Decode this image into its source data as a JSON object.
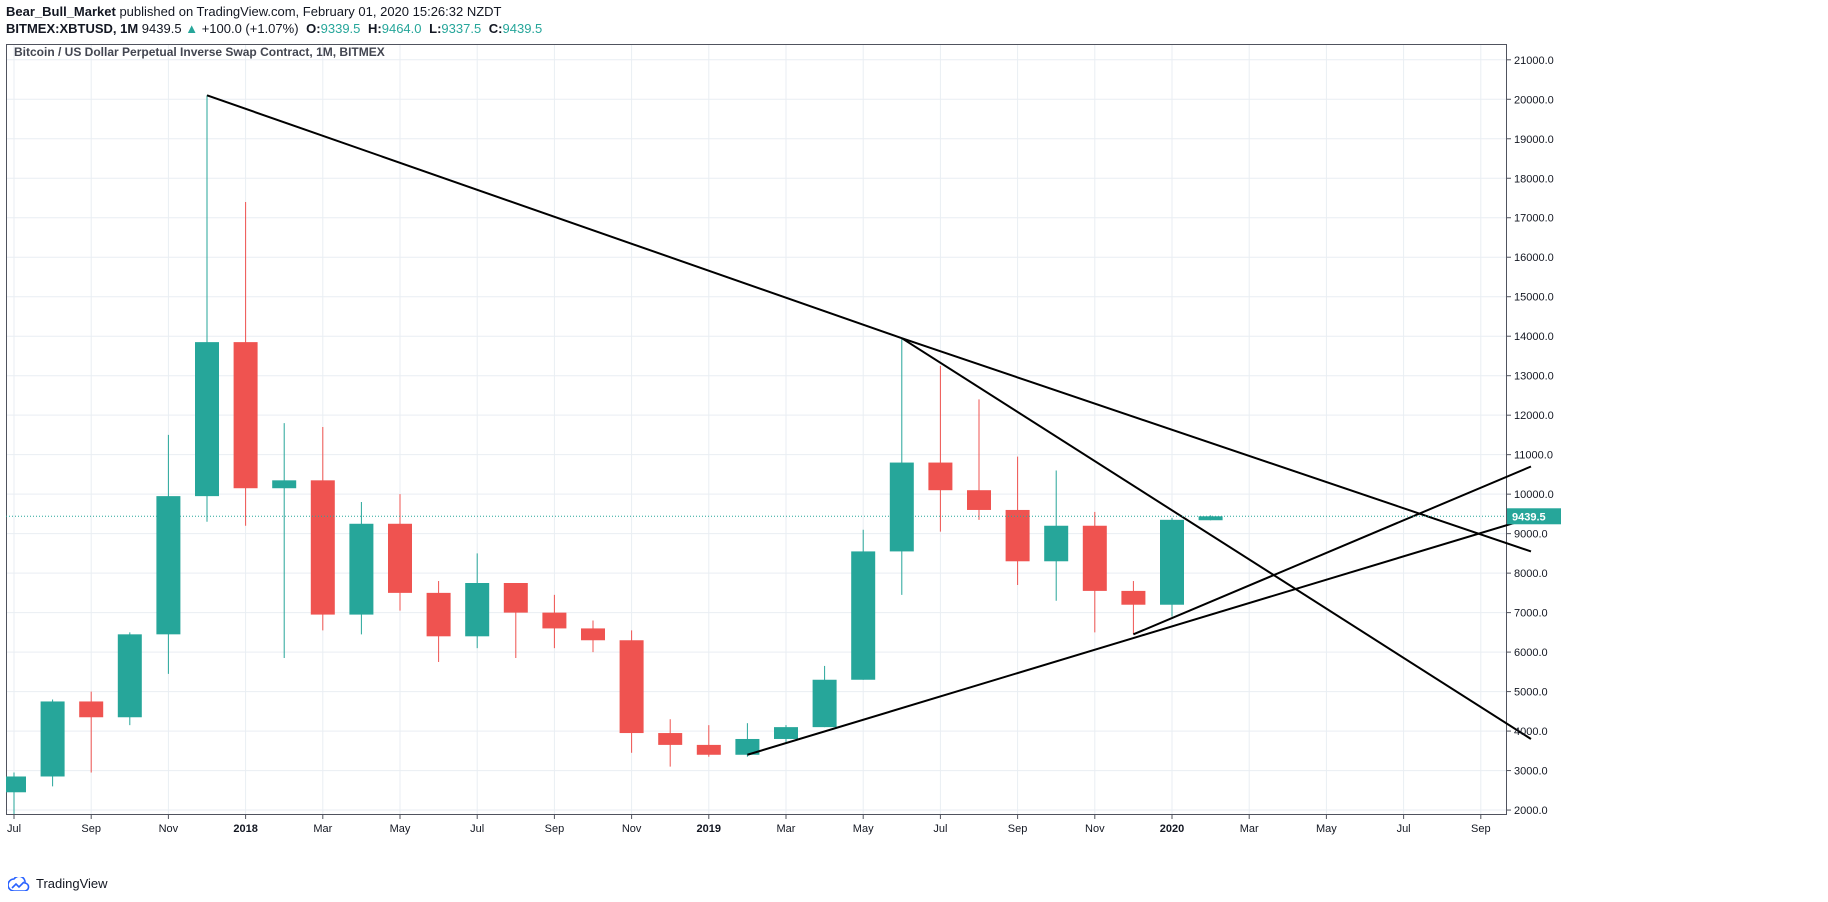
{
  "header": {
    "author": "Bear_Bull_Market",
    "published_text": "published on TradingView.com, February 01, 2020 15:26:32 NZDT",
    "symbol": "BITMEX:XBTUSD, 1M",
    "last": "9439.5",
    "change_arrow": "▲",
    "change": "+100.0 (+1.07%)",
    "open_label": "O:",
    "open": "9339.5",
    "high_label": "H:",
    "high": "9464.0",
    "low_label": "L:",
    "low": "9337.5",
    "close_label": "C:",
    "close": "9439.5"
  },
  "footer": {
    "brand": "TradingView",
    "logo_icon": "tradingview-logo-icon"
  },
  "colors": {
    "up": "#26a69a",
    "down": "#ef5350",
    "grid": "#e9eef3",
    "trendline": "#000000",
    "price_line": "#26a69a"
  },
  "chart_data": {
    "type": "candlestick",
    "title": "Bitcoin / US Dollar Perpetual Inverse Swap Contract, 1M, BITMEX",
    "y_ticks": [
      "2000.0",
      "3000.0",
      "4000.0",
      "5000.0",
      "6000.0",
      "7000.0",
      "8000.0",
      "9000.0",
      "10000.0",
      "11000.0",
      "12000.0",
      "13000.0",
      "14000.0",
      "15000.0",
      "16000.0",
      "17000.0",
      "18000.0",
      "19000.0",
      "20000.0",
      "21000.0"
    ],
    "ylim": [
      1900,
      21400
    ],
    "x_ticks": [
      {
        "i": 0,
        "label": "Jul",
        "bold": false
      },
      {
        "i": 2,
        "label": "Sep",
        "bold": false
      },
      {
        "i": 4,
        "label": "Nov",
        "bold": false
      },
      {
        "i": 6,
        "label": "2018",
        "bold": true
      },
      {
        "i": 8,
        "label": "Mar",
        "bold": false
      },
      {
        "i": 10,
        "label": "May",
        "bold": false
      },
      {
        "i": 12,
        "label": "Jul",
        "bold": false
      },
      {
        "i": 14,
        "label": "Sep",
        "bold": false
      },
      {
        "i": 16,
        "label": "Nov",
        "bold": false
      },
      {
        "i": 18,
        "label": "2019",
        "bold": true
      },
      {
        "i": 20,
        "label": "Mar",
        "bold": false
      },
      {
        "i": 22,
        "label": "May",
        "bold": false
      },
      {
        "i": 24,
        "label": "Jul",
        "bold": false
      },
      {
        "i": 26,
        "label": "Sep",
        "bold": false
      },
      {
        "i": 28,
        "label": "Nov",
        "bold": false
      },
      {
        "i": 30,
        "label": "2020",
        "bold": true
      },
      {
        "i": 32,
        "label": "Mar",
        "bold": false
      },
      {
        "i": 34,
        "label": "May",
        "bold": false
      },
      {
        "i": 36,
        "label": "Jul",
        "bold": false
      },
      {
        "i": 38,
        "label": "Sep",
        "bold": false
      }
    ],
    "candles": [
      {
        "date": "2017-07",
        "o": 2450,
        "h": 2950,
        "l": 1900,
        "c": 2850
      },
      {
        "date": "2017-08",
        "o": 2850,
        "h": 4800,
        "l": 2600,
        "c": 4750
      },
      {
        "date": "2017-09",
        "o": 4750,
        "h": 5000,
        "l": 2950,
        "c": 4350
      },
      {
        "date": "2017-10",
        "o": 4350,
        "h": 6500,
        "l": 4150,
        "c": 6450
      },
      {
        "date": "2017-11",
        "o": 6450,
        "h": 11500,
        "l": 5450,
        "c": 9950
      },
      {
        "date": "2017-12",
        "o": 9950,
        "h": 20100,
        "l": 9300,
        "c": 13850
      },
      {
        "date": "2018-01",
        "o": 13850,
        "h": 17400,
        "l": 9200,
        "c": 10150
      },
      {
        "date": "2018-02",
        "o": 10150,
        "h": 11800,
        "l": 5850,
        "c": 10350
      },
      {
        "date": "2018-03",
        "o": 10350,
        "h": 11700,
        "l": 6550,
        "c": 6950
      },
      {
        "date": "2018-04",
        "o": 6950,
        "h": 9800,
        "l": 6450,
        "c": 9250
      },
      {
        "date": "2018-05",
        "o": 9250,
        "h": 10000,
        "l": 7050,
        "c": 7500
      },
      {
        "date": "2018-06",
        "o": 7500,
        "h": 7800,
        "l": 5750,
        "c": 6400
      },
      {
        "date": "2018-07",
        "o": 6400,
        "h": 8500,
        "l": 6100,
        "c": 7750
      },
      {
        "date": "2018-08",
        "o": 7750,
        "h": 7750,
        "l": 5850,
        "c": 7000
      },
      {
        "date": "2018-09",
        "o": 7000,
        "h": 7450,
        "l": 6100,
        "c": 6600
      },
      {
        "date": "2018-10",
        "o": 6600,
        "h": 6800,
        "l": 6000,
        "c": 6300
      },
      {
        "date": "2018-11",
        "o": 6300,
        "h": 6550,
        "l": 3450,
        "c": 3950
      },
      {
        "date": "2018-12",
        "o": 3950,
        "h": 4300,
        "l": 3100,
        "c": 3650
      },
      {
        "date": "2019-01",
        "o": 3650,
        "h": 4150,
        "l": 3350,
        "c": 3400
      },
      {
        "date": "2019-02",
        "o": 3400,
        "h": 4200,
        "l": 3350,
        "c": 3800
      },
      {
        "date": "2019-03",
        "o": 3800,
        "h": 4150,
        "l": 3700,
        "c": 4100
      },
      {
        "date": "2019-04",
        "o": 4100,
        "h": 5650,
        "l": 4100,
        "c": 5300
      },
      {
        "date": "2019-05",
        "o": 5300,
        "h": 9100,
        "l": 5300,
        "c": 8550
      },
      {
        "date": "2019-06",
        "o": 8550,
        "h": 13950,
        "l": 7450,
        "c": 10800
      },
      {
        "date": "2019-07",
        "o": 10800,
        "h": 13250,
        "l": 9050,
        "c": 10100
      },
      {
        "date": "2019-08",
        "o": 10100,
        "h": 12400,
        "l": 9350,
        "c": 9600
      },
      {
        "date": "2019-09",
        "o": 9600,
        "h": 10950,
        "l": 7700,
        "c": 8300
      },
      {
        "date": "2019-10",
        "o": 8300,
        "h": 10600,
        "l": 7300,
        "c": 9200
      },
      {
        "date": "2019-11",
        "o": 9200,
        "h": 9550,
        "l": 6500,
        "c": 7550
      },
      {
        "date": "2019-12",
        "o": 7550,
        "h": 7800,
        "l": 6450,
        "c": 7200
      },
      {
        "date": "2020-01",
        "o": 7200,
        "h": 9400,
        "l": 6900,
        "c": 9350
      },
      {
        "date": "2020-02",
        "o": 9339.5,
        "h": 9464.0,
        "l": 9337.5,
        "c": 9439.5
      }
    ],
    "trendlines": [
      {
        "x1": 5.0,
        "y1": 20100,
        "x2": 23.0,
        "y2": 13950
      },
      {
        "x1": 23.0,
        "y1": 13950,
        "x2": 39.3,
        "y2": 8550
      },
      {
        "x1": 23.0,
        "y1": 13950,
        "x2": 39.3,
        "y2": 3800
      },
      {
        "x1": 19.0,
        "y1": 3400,
        "x2": 39.3,
        "y2": 9400
      },
      {
        "x1": 29.0,
        "y1": 6450,
        "x2": 39.3,
        "y2": 10700
      }
    ],
    "last_price": 9439.5,
    "last_price_label": "9439.5"
  }
}
